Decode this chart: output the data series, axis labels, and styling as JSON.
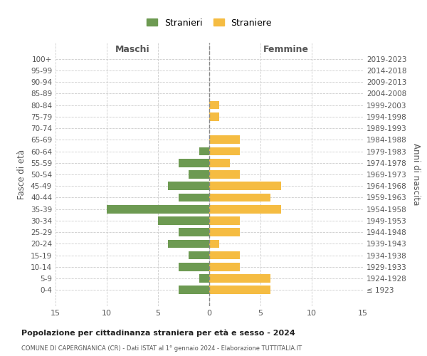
{
  "age_groups": [
    "100+",
    "95-99",
    "90-94",
    "85-89",
    "80-84",
    "75-79",
    "70-74",
    "65-69",
    "60-64",
    "55-59",
    "50-54",
    "45-49",
    "40-44",
    "35-39",
    "30-34",
    "25-29",
    "20-24",
    "15-19",
    "10-14",
    "5-9",
    "0-4"
  ],
  "birth_years": [
    "≤ 1923",
    "1924-1928",
    "1929-1933",
    "1934-1938",
    "1939-1943",
    "1944-1948",
    "1949-1953",
    "1954-1958",
    "1959-1963",
    "1964-1968",
    "1969-1973",
    "1974-1978",
    "1979-1983",
    "1984-1988",
    "1989-1993",
    "1994-1998",
    "1999-2003",
    "2004-2008",
    "2009-2013",
    "2014-2018",
    "2019-2023"
  ],
  "maschi": [
    0,
    0,
    0,
    0,
    0,
    0,
    0,
    0,
    1,
    3,
    2,
    4,
    3,
    10,
    5,
    3,
    4,
    2,
    3,
    1,
    3
  ],
  "femmine": [
    0,
    0,
    0,
    0,
    1,
    1,
    0,
    3,
    3,
    2,
    3,
    7,
    6,
    7,
    3,
    3,
    1,
    3,
    3,
    6,
    6
  ],
  "color_maschi": "#6d9a52",
  "color_femmine": "#f5bc42",
  "title": "Popolazione per cittadinanza straniera per età e sesso - 2024",
  "subtitle": "COMUNE DI CAPERGNANICA (CR) - Dati ISTAT al 1° gennaio 2024 - Elaborazione TUTTITALIA.IT",
  "ylabel_left": "Fasce di età",
  "ylabel_right": "Anni di nascita",
  "label_maschi": "Maschi",
  "label_femmine": "Femmine",
  "legend_maschi": "Stranieri",
  "legend_femmine": "Straniere",
  "xlim": 15,
  "background_color": "#ffffff",
  "grid_color": "#cccccc"
}
